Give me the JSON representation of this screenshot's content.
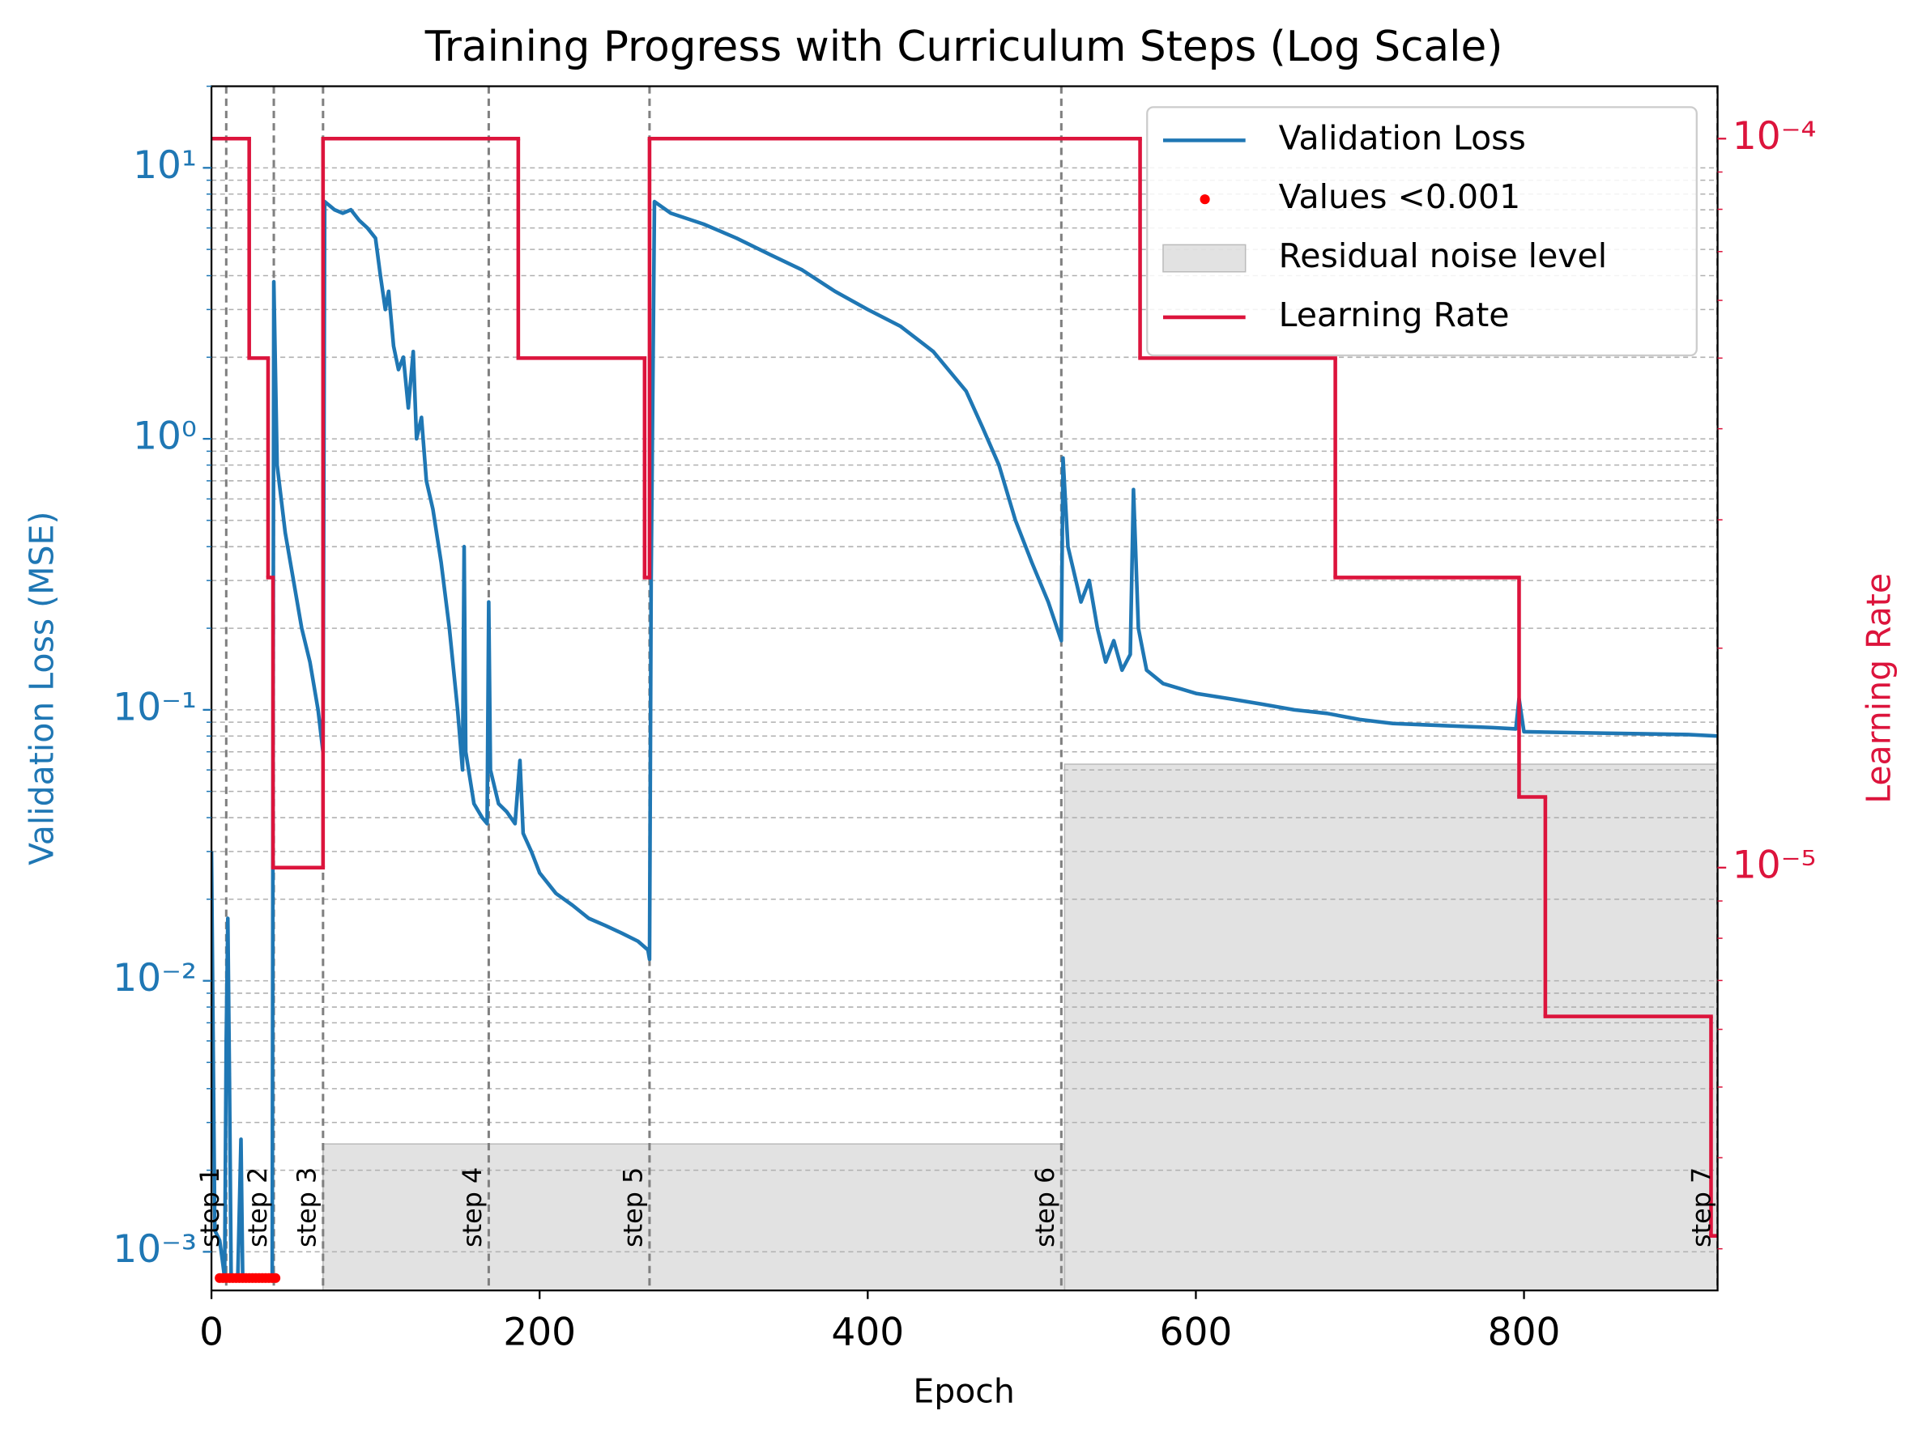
{
  "chart_data": {
    "type": "line",
    "title": "Training Progress with Curriculum Steps (Log Scale)",
    "xlabel": "Epoch",
    "ylabel": "Validation Loss (MSE)",
    "y2label": "Learning Rate",
    "xlim": [
      0,
      918
    ],
    "xticks": [
      0,
      200,
      400,
      600,
      800
    ],
    "yscale": "log",
    "ylim": [
      0.00072,
      20
    ],
    "yticks": [
      {
        "value": 0.001,
        "label": "10⁻³"
      },
      {
        "value": 0.01,
        "label": "10⁻²"
      },
      {
        "value": 0.1,
        "label": "10⁻¹"
      },
      {
        "value": 1,
        "label": "10⁰"
      },
      {
        "value": 10,
        "label": "10¹"
      }
    ],
    "yminorticks": [
      0.002,
      0.003,
      0.004,
      0.005,
      0.006,
      0.007,
      0.008,
      0.009,
      0.02,
      0.03,
      0.04,
      0.05,
      0.06,
      0.07,
      0.08,
      0.09,
      0.2,
      0.3,
      0.4,
      0.5,
      0.6,
      0.7,
      0.8,
      0.9,
      2,
      3,
      4,
      5,
      6,
      7,
      8,
      9,
      20
    ],
    "y2scale": "log",
    "y2lim": [
      2.63e-06,
      0.000118
    ],
    "y2ticks": [
      {
        "value": 1e-05,
        "label": "10⁻⁵"
      },
      {
        "value": 0.0001,
        "label": "10⁻⁴"
      }
    ],
    "y2minorticks": [
      3e-06,
      4e-06,
      5e-06,
      6e-06,
      7e-06,
      8e-06,
      9e-06,
      2e-05,
      3e-05,
      4e-05,
      5e-05,
      6e-05,
      7e-05,
      8e-05,
      9e-05
    ],
    "grid": true,
    "legend": "upper right",
    "step_lines": {
      "x": [
        9,
        38,
        68,
        169,
        267,
        518,
        918
      ],
      "labels": [
        "step 1",
        "step 2",
        "step 3",
        "step 4",
        "step 5",
        "step 6",
        "step 7"
      ],
      "color": "#808080"
    },
    "series": [
      {
        "name": "Validation Loss",
        "type": "line",
        "color": "#1f77b4",
        "x": [
          0,
          2,
          5,
          7,
          8,
          9,
          10,
          11,
          12,
          16,
          18,
          19,
          37,
          38,
          40,
          45,
          50,
          55,
          60,
          65,
          68,
          69,
          75,
          80,
          85,
          90,
          95,
          100,
          103,
          106,
          108,
          111,
          114,
          117,
          120,
          123,
          125,
          128,
          131,
          135,
          140,
          145,
          150,
          153,
          154,
          155,
          160,
          165,
          168,
          169,
          170,
          175,
          180,
          185,
          188,
          190,
          195,
          200,
          210,
          220,
          230,
          240,
          250,
          260,
          266,
          267,
          268,
          270,
          280,
          300,
          320,
          340,
          360,
          380,
          400,
          420,
          440,
          460,
          470,
          480,
          490,
          500,
          510,
          518,
          519,
          522,
          530,
          535,
          540,
          545,
          550,
          555,
          560,
          562,
          565,
          570,
          580,
          600,
          620,
          640,
          660,
          680,
          700,
          720,
          740,
          760,
          780,
          795,
          797,
          800,
          850,
          900,
          918
        ],
        "values": [
          0.03,
          0.0012,
          0.0011,
          0.0009,
          0.0008,
          0.006,
          0.017,
          0.004,
          0.0008,
          0.0008,
          0.0026,
          0.0008,
          0.0008,
          3.8,
          0.8,
          0.45,
          0.3,
          0.2,
          0.15,
          0.1,
          0.07,
          7.5,
          7.0,
          6.8,
          7.0,
          6.4,
          6.0,
          5.5,
          4.0,
          3.0,
          3.5,
          2.2,
          1.8,
          2.0,
          1.3,
          2.1,
          1.0,
          1.2,
          0.7,
          0.55,
          0.35,
          0.2,
          0.1,
          0.06,
          0.4,
          0.07,
          0.045,
          0.04,
          0.038,
          0.25,
          0.06,
          0.045,
          0.042,
          0.038,
          0.065,
          0.035,
          0.03,
          0.025,
          0.021,
          0.019,
          0.017,
          0.016,
          0.015,
          0.014,
          0.013,
          0.012,
          0.3,
          7.5,
          6.8,
          6.2,
          5.5,
          4.8,
          4.2,
          3.5,
          3.0,
          2.6,
          2.1,
          1.5,
          1.1,
          0.8,
          0.5,
          0.35,
          0.25,
          0.18,
          0.85,
          0.4,
          0.25,
          0.3,
          0.2,
          0.15,
          0.18,
          0.14,
          0.16,
          0.65,
          0.2,
          0.14,
          0.125,
          0.115,
          0.11,
          0.105,
          0.1,
          0.097,
          0.092,
          0.089,
          0.088,
          0.087,
          0.086,
          0.085,
          0.11,
          0.083,
          0.082,
          0.081,
          0.08
        ]
      },
      {
        "name": "Values <0.001",
        "type": "scatter",
        "color": "#ff0000",
        "x": [
          5,
          7,
          9,
          11,
          13,
          15,
          17,
          19,
          21,
          23,
          25,
          27,
          29,
          31,
          33,
          35,
          37,
          39
        ],
        "values": [
          0.0008,
          0.0008,
          0.0008,
          0.0008,
          0.0008,
          0.0008,
          0.0008,
          0.0008,
          0.0008,
          0.0008,
          0.0008,
          0.0008,
          0.0008,
          0.0008,
          0.0008,
          0.0008,
          0.0008,
          0.0008
        ]
      },
      {
        "name": "Residual noise level",
        "type": "fill",
        "drawstyle": "steps-post",
        "color": "#d3d3d3",
        "x": [
          68,
          520
        ],
        "values": [
          0.0025,
          0.063
        ]
      },
      {
        "name": "Learning Rate",
        "type": "line",
        "drawstyle": "steps-post",
        "axis": "y2",
        "color": "#dc143c",
        "x": [
          0,
          23,
          34.5,
          37.5,
          68,
          187,
          264,
          267,
          566,
          685,
          797,
          813,
          914
        ],
        "values": [
          0.0001,
          5e-05,
          2.5e-05,
          1e-05,
          0.0001,
          5e-05,
          2.5e-05,
          0.0001,
          5e-05,
          2.5e-05,
          1.25e-05,
          6.25e-06,
          3.125e-06
        ]
      }
    ]
  }
}
